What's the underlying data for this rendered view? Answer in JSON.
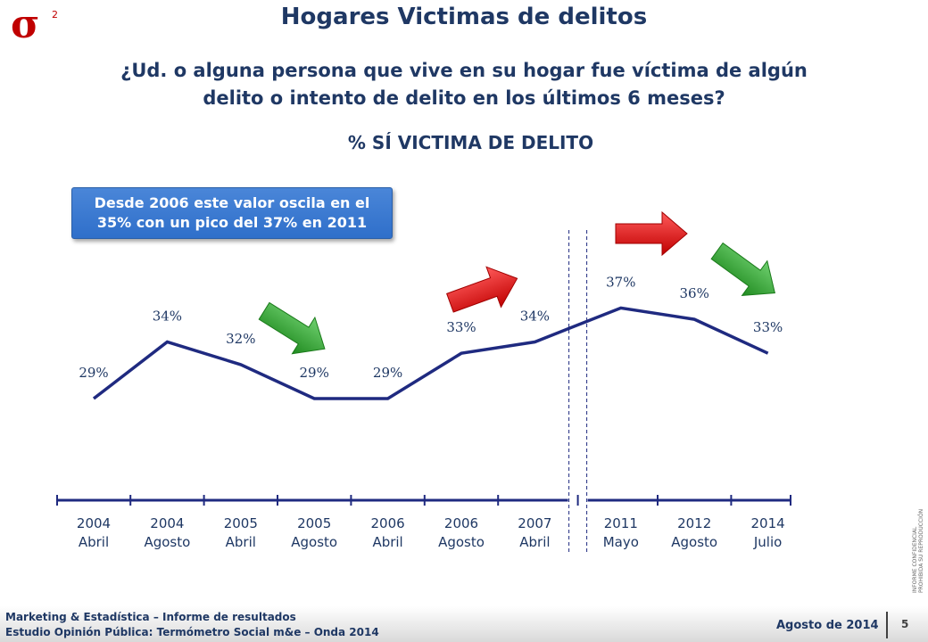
{
  "title": "Hogares Victimas de delitos",
  "question": "¿Ud. o alguna persona que vive en su hogar fue víctima de algún delito o intento de delito en los últimos 6 meses?",
  "subtitle": "% SÍ VICTIMA DE DELITO",
  "callout": "Desde 2006 este valor oscila en el 35% con un pico del 37% en 2011",
  "logo": {
    "symbol": "σ",
    "superscript": "2",
    "color": "#c00000"
  },
  "side_note": [
    "INFORME CONFIDENCIAL",
    "PROHIBIDA SU REPRODUCCIÓN"
  ],
  "footer": {
    "line1": "Marketing & Estadística – Informe de resultados",
    "line2": "Estudio Opinión Pública: Termómetro Social m&e – Onda 2014",
    "date": "Agosto de 2014",
    "page": "5"
  },
  "colors": {
    "line": "#1f2a80",
    "title": "#1f3864",
    "callout": "#3a78d0",
    "arrow_up": "#e02020",
    "arrow_down": "#2aa02a"
  },
  "chart_data": {
    "type": "line",
    "categories": [
      "2004 Abril",
      "2004 Agosto",
      "2005 Abril",
      "2005 Agosto",
      "2006 Abril",
      "2006 Agosto",
      "2007 Abril",
      "2011 Mayo",
      "2012 Agosto",
      "2014 Julio"
    ],
    "category_lines": [
      [
        "2004",
        "Abril"
      ],
      [
        "2004",
        "Agosto"
      ],
      [
        "2005",
        "Abril"
      ],
      [
        "2005",
        "Agosto"
      ],
      [
        "2006",
        "Abril"
      ],
      [
        "2006",
        "Agosto"
      ],
      [
        "2007",
        "Abril"
      ],
      [
        "2011",
        "Mayo"
      ],
      [
        "2012",
        "Agosto"
      ],
      [
        "2014",
        "Julio"
      ]
    ],
    "values": [
      29,
      34,
      32,
      29,
      29,
      33,
      34,
      37,
      36,
      33
    ],
    "data_labels": [
      "29%",
      "34%",
      "32%",
      "29%",
      "29%",
      "33%",
      "34%",
      "37%",
      "36%",
      "33%"
    ],
    "axis_break_after_index": 6,
    "trend_arrows": [
      {
        "type": "down",
        "color": "#2aa02a"
      },
      {
        "type": "up",
        "color": "#e02020"
      },
      {
        "type": "flat",
        "color": "#e02020"
      },
      {
        "type": "down",
        "color": "#2aa02a"
      }
    ]
  }
}
